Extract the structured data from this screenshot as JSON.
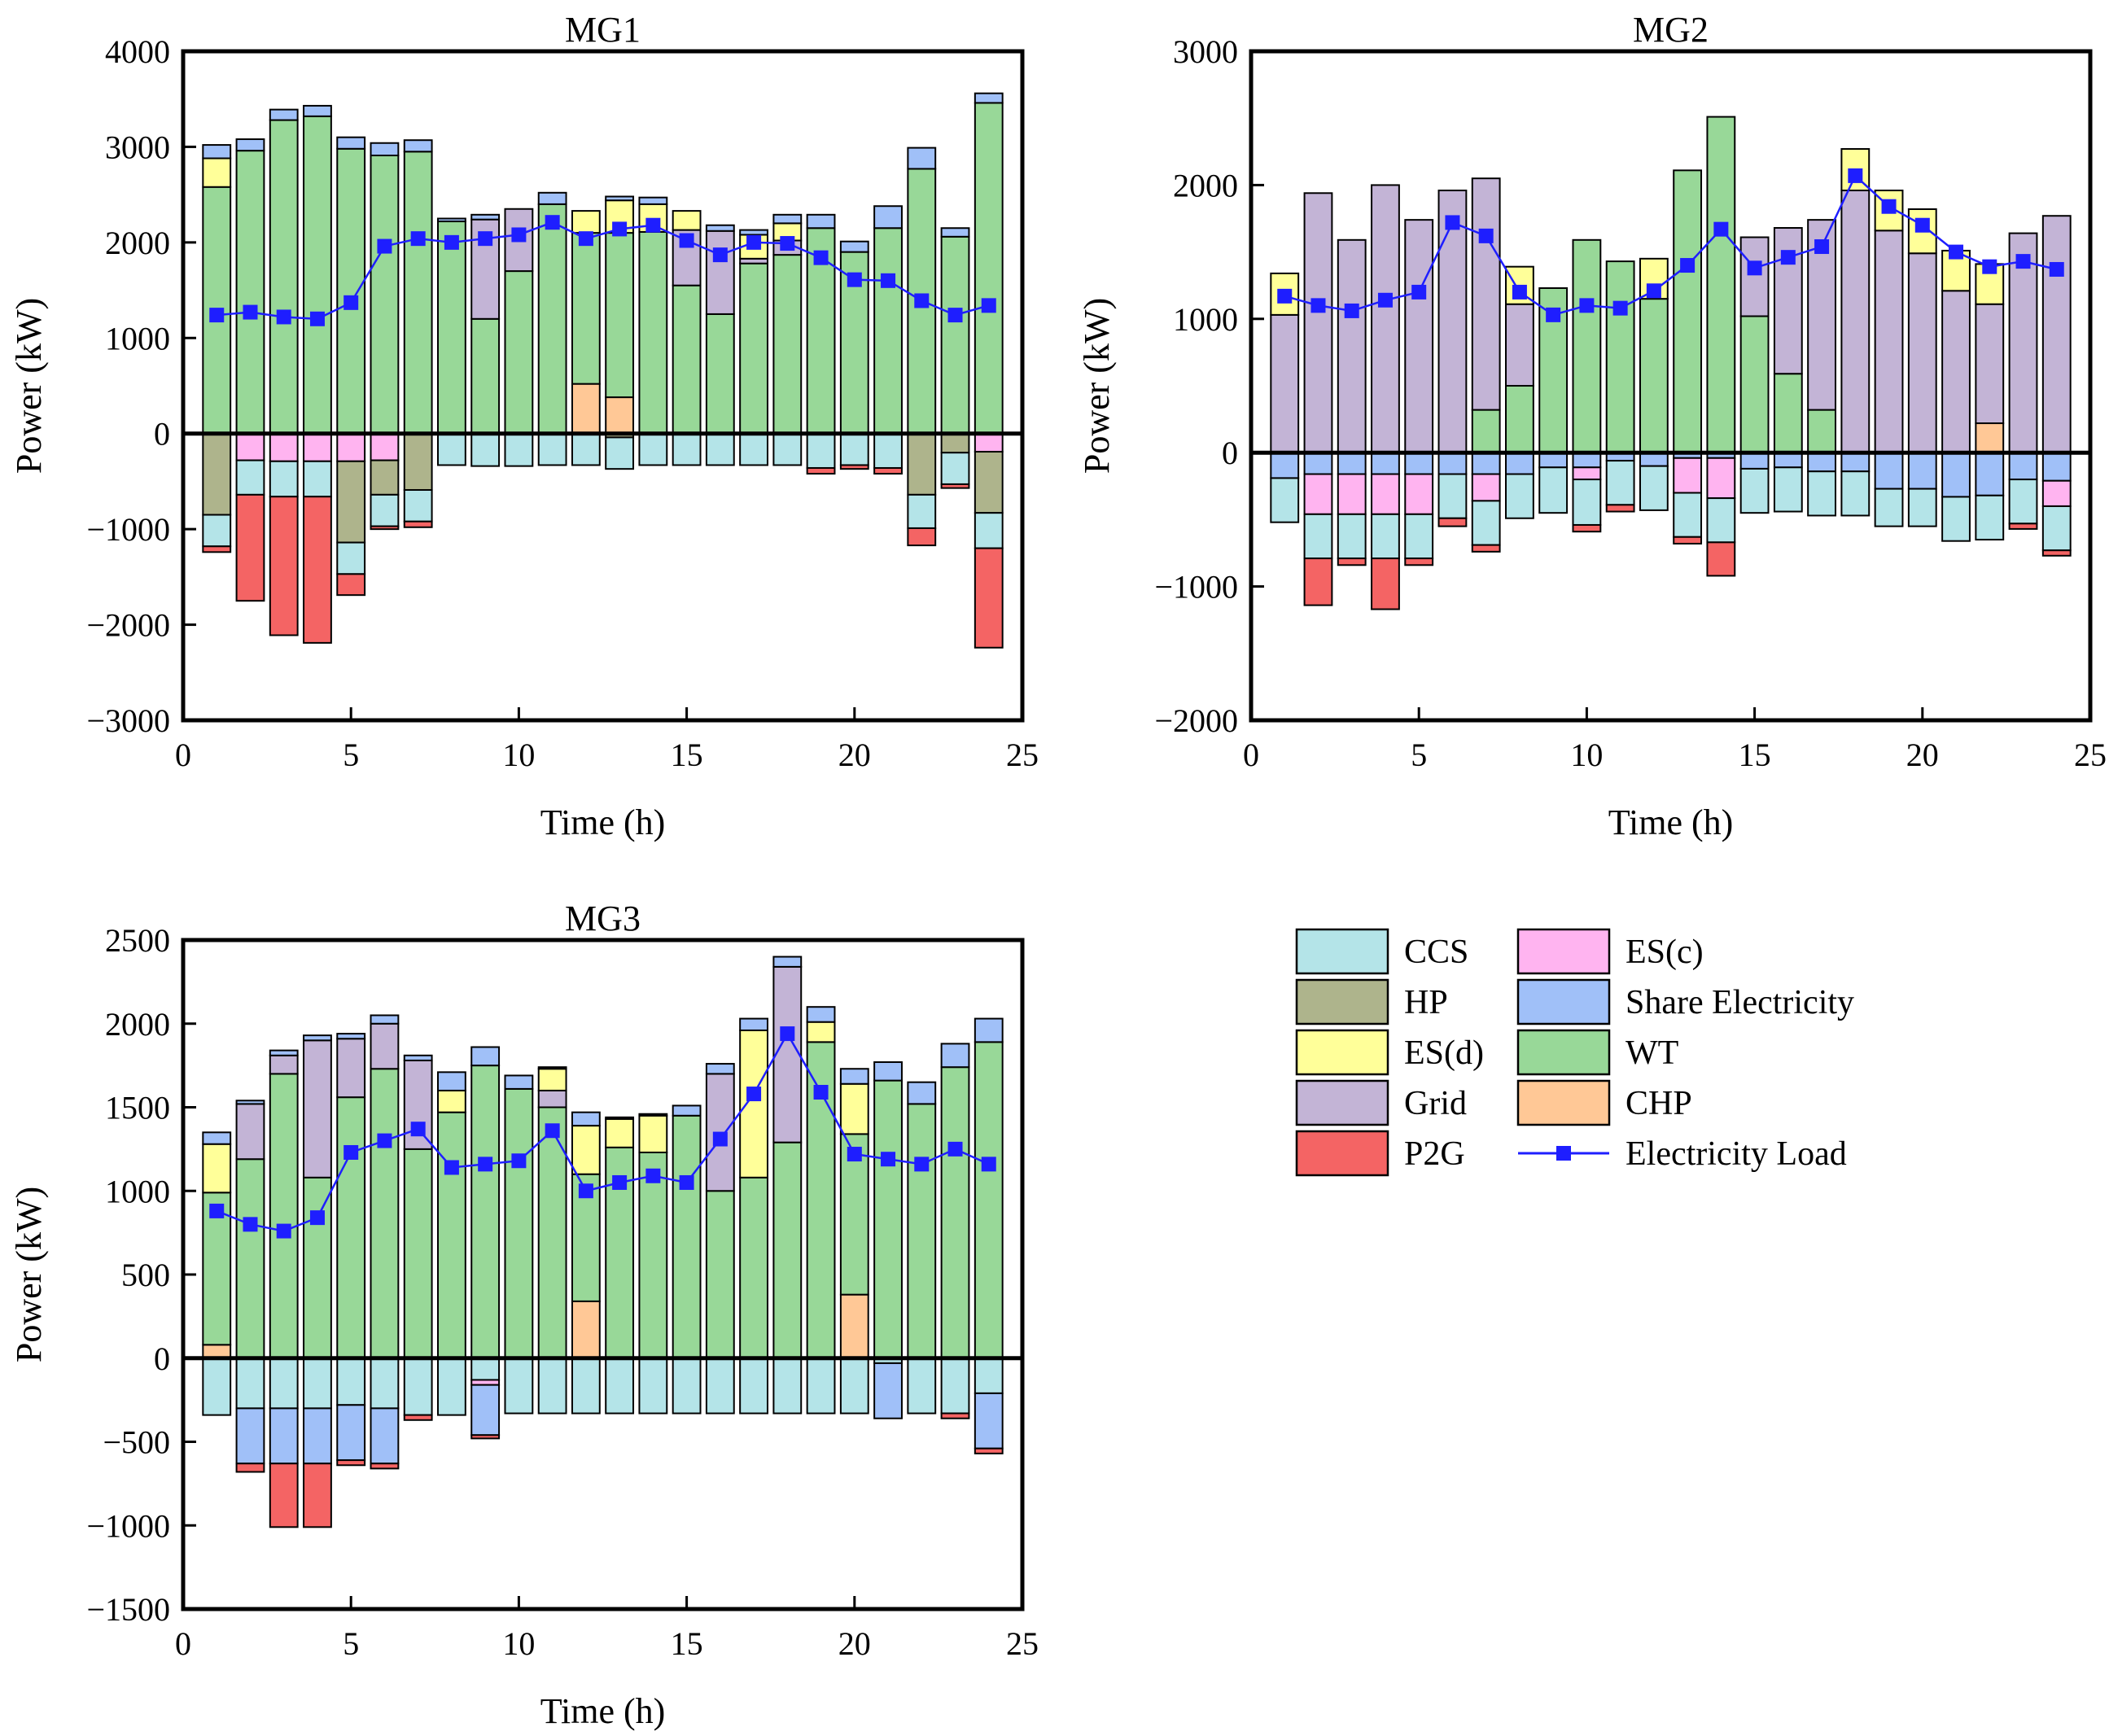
{
  "chart_data": [
    {
      "id": "mg1",
      "type": "stacked-bar+line",
      "title": "MG1",
      "xlabel": "Time (h)",
      "ylabel": "Power (kW)",
      "xlim": [
        0,
        25
      ],
      "ylim": [
        -3000,
        4000
      ],
      "xticks": [
        0,
        5,
        10,
        15,
        20,
        25
      ],
      "yticks": [
        -3000,
        -2000,
        -1000,
        0,
        1000,
        2000,
        3000,
        4000
      ],
      "x": [
        1,
        2,
        3,
        4,
        5,
        6,
        7,
        8,
        9,
        10,
        11,
        12,
        13,
        14,
        15,
        16,
        17,
        18,
        19,
        20,
        21,
        22,
        23,
        24
      ],
      "positive": [
        {
          "name": "CHP",
          "values": [
            0,
            0,
            0,
            0,
            0,
            0,
            0,
            0,
            0,
            0,
            0,
            520,
            380,
            0,
            0,
            0,
            0,
            0,
            0,
            0,
            0,
            0,
            0,
            0
          ]
        },
        {
          "name": "WT",
          "values": [
            2580,
            2960,
            3280,
            3320,
            2980,
            2910,
            2950,
            2220,
            1200,
            1700,
            2400,
            1580,
            1720,
            2110,
            1550,
            1250,
            1780,
            1870,
            2150,
            1900,
            2150,
            2770,
            2060,
            3460
          ]
        },
        {
          "name": "Grid",
          "values": [
            0,
            0,
            0,
            0,
            0,
            0,
            0,
            0,
            1040,
            650,
            0,
            0,
            0,
            0,
            580,
            870,
            50,
            150,
            0,
            0,
            0,
            0,
            0,
            0
          ]
        },
        {
          "name": "ES(d)",
          "values": [
            300,
            0,
            0,
            0,
            0,
            0,
            0,
            0,
            0,
            0,
            0,
            230,
            340,
            290,
            200,
            0,
            250,
            180,
            0,
            0,
            0,
            0,
            0,
            0
          ]
        },
        {
          "name": "Share Electricity",
          "values": [
            140,
            120,
            110,
            110,
            120,
            130,
            120,
            30,
            50,
            0,
            120,
            0,
            40,
            70,
            0,
            60,
            50,
            90,
            140,
            110,
            230,
            220,
            90,
            100
          ]
        }
      ],
      "negative": [
        {
          "name": "ES(c)",
          "values": [
            0,
            -280,
            -290,
            -290,
            -290,
            -280,
            0,
            0,
            0,
            0,
            0,
            0,
            0,
            0,
            0,
            0,
            0,
            0,
            0,
            0,
            0,
            0,
            0,
            -190
          ]
        },
        {
          "name": "HP",
          "values": [
            -850,
            0,
            0,
            0,
            -850,
            -360,
            -590,
            0,
            0,
            0,
            0,
            0,
            -40,
            0,
            0,
            0,
            0,
            0,
            0,
            0,
            0,
            -640,
            -200,
            -640
          ]
        },
        {
          "name": "CCS",
          "values": [
            -330,
            -360,
            -370,
            -370,
            -330,
            -330,
            -330,
            -330,
            -340,
            -340,
            -330,
            -330,
            -330,
            -330,
            -330,
            -330,
            -330,
            -330,
            -360,
            -330,
            -360,
            -350,
            -330,
            -370
          ]
        },
        {
          "name": "P2G",
          "values": [
            -60,
            -1110,
            -1450,
            -1530,
            -220,
            -30,
            -60,
            0,
            0,
            0,
            0,
            0,
            0,
            0,
            0,
            0,
            0,
            0,
            -60,
            -40,
            -60,
            -180,
            -40,
            -1040
          ]
        }
      ],
      "series": [
        {
          "name": "Electricity Load",
          "values": [
            1240,
            1270,
            1220,
            1200,
            1370,
            1960,
            2040,
            2000,
            2040,
            2080,
            2210,
            2040,
            2140,
            2180,
            2020,
            1870,
            2000,
            1990,
            1840,
            1610,
            1600,
            1390,
            1240,
            1340
          ]
        }
      ]
    },
    {
      "id": "mg2",
      "type": "stacked-bar+line",
      "title": "MG2",
      "xlabel": "Time (h)",
      "ylabel": "Power (kW)",
      "xlim": [
        0,
        25
      ],
      "ylim": [
        -2000,
        3000
      ],
      "xticks": [
        0,
        5,
        10,
        15,
        20,
        25
      ],
      "yticks": [
        -2000,
        -1000,
        0,
        1000,
        2000,
        3000
      ],
      "x": [
        1,
        2,
        3,
        4,
        5,
        6,
        7,
        8,
        9,
        10,
        11,
        12,
        13,
        14,
        15,
        16,
        17,
        18,
        19,
        20,
        21,
        22,
        23,
        24
      ],
      "positive": [
        {
          "name": "CHP",
          "values": [
            0,
            0,
            0,
            0,
            0,
            0,
            0,
            0,
            0,
            0,
            0,
            0,
            0,
            0,
            0,
            0,
            0,
            0,
            0,
            0,
            0,
            220,
            0,
            0
          ]
        },
        {
          "name": "WT",
          "values": [
            0,
            0,
            0,
            0,
            0,
            0,
            320,
            500,
            1230,
            1590,
            1430,
            1150,
            2110,
            2510,
            1020,
            590,
            320,
            0,
            0,
            0,
            0,
            0,
            0,
            0
          ]
        },
        {
          "name": "Grid",
          "values": [
            1030,
            1940,
            1590,
            2000,
            1740,
            1960,
            1730,
            610,
            0,
            0,
            0,
            0,
            0,
            0,
            590,
            1090,
            1420,
            1960,
            1660,
            1490,
            1210,
            890,
            1640,
            1770
          ]
        },
        {
          "name": "ES(d)",
          "values": [
            310,
            0,
            0,
            0,
            0,
            0,
            0,
            280,
            0,
            0,
            0,
            300,
            0,
            0,
            0,
            0,
            0,
            310,
            300,
            330,
            300,
            300,
            0,
            0
          ]
        }
      ],
      "negative": [
        {
          "name": "Share Electricity",
          "values": [
            -190,
            -160,
            -160,
            -160,
            -160,
            -160,
            -160,
            -160,
            -110,
            -110,
            -60,
            -100,
            -40,
            -40,
            -120,
            -110,
            -140,
            -140,
            -270,
            -270,
            -330,
            -320,
            -200,
            -210
          ]
        },
        {
          "name": "ES(c)",
          "values": [
            0,
            -300,
            -300,
            -300,
            -300,
            0,
            -200,
            0,
            0,
            -90,
            0,
            0,
            -260,
            -300,
            0,
            0,
            0,
            0,
            0,
            0,
            0,
            0,
            0,
            -190
          ]
        },
        {
          "name": "CCS",
          "values": [
            -330,
            -330,
            -330,
            -330,
            -330,
            -330,
            -330,
            -330,
            -340,
            -340,
            -330,
            -330,
            -330,
            -330,
            -330,
            -330,
            -330,
            -330,
            -280,
            -280,
            -330,
            -330,
            -330,
            -330
          ]
        },
        {
          "name": "P2G",
          "values": [
            0,
            -350,
            -50,
            -380,
            -50,
            -60,
            -50,
            0,
            0,
            -50,
            -50,
            0,
            -50,
            -250,
            0,
            0,
            0,
            0,
            0,
            0,
            0,
            0,
            -40,
            -40
          ]
        }
      ],
      "series": [
        {
          "name": "Electricity Load",
          "values": [
            1170,
            1100,
            1060,
            1140,
            1200,
            1720,
            1620,
            1200,
            1030,
            1100,
            1080,
            1210,
            1400,
            1670,
            1380,
            1460,
            1540,
            2070,
            1840,
            1700,
            1500,
            1390,
            1430,
            1370
          ]
        }
      ]
    },
    {
      "id": "mg3",
      "type": "stacked-bar+line",
      "title": "MG3",
      "xlabel": "Time (h)",
      "ylabel": "Power (kW)",
      "xlim": [
        0,
        25
      ],
      "ylim": [
        -1500,
        2500
      ],
      "xticks": [
        0,
        5,
        10,
        15,
        20,
        25
      ],
      "yticks": [
        -1500,
        -1000,
        -500,
        0,
        500,
        1000,
        1500,
        2000,
        2500
      ],
      "x": [
        1,
        2,
        3,
        4,
        5,
        6,
        7,
        8,
        9,
        10,
        11,
        12,
        13,
        14,
        15,
        16,
        17,
        18,
        19,
        20,
        21,
        22,
        23,
        24
      ],
      "positive": [
        {
          "name": "CHP",
          "values": [
            80,
            0,
            0,
            0,
            0,
            0,
            0,
            0,
            0,
            0,
            0,
            340,
            0,
            0,
            0,
            0,
            0,
            0,
            0,
            380,
            0,
            0,
            0,
            0
          ]
        },
        {
          "name": "WT",
          "values": [
            910,
            1190,
            1700,
            1080,
            1560,
            1730,
            1250,
            1470,
            1750,
            1610,
            1500,
            760,
            1260,
            1230,
            1450,
            1000,
            1080,
            1290,
            1890,
            960,
            1660,
            1520,
            1740,
            1890
          ]
        },
        {
          "name": "Grid",
          "values": [
            0,
            330,
            110,
            820,
            350,
            270,
            530,
            0,
            0,
            0,
            100,
            0,
            0,
            0,
            0,
            700,
            0,
            1050,
            0,
            0,
            0,
            0,
            0,
            0
          ]
        },
        {
          "name": "ES(d)",
          "values": [
            290,
            0,
            0,
            0,
            0,
            0,
            0,
            130,
            0,
            0,
            130,
            290,
            170,
            220,
            0,
            0,
            880,
            0,
            120,
            300,
            0,
            0,
            0,
            0
          ]
        },
        {
          "name": "Share Electricity",
          "values": [
            70,
            20,
            30,
            30,
            30,
            50,
            30,
            110,
            110,
            80,
            10,
            80,
            10,
            10,
            60,
            60,
            70,
            60,
            90,
            90,
            110,
            130,
            140,
            140
          ]
        }
      ],
      "negative": [
        {
          "name": "CCS",
          "values": [
            -340,
            -300,
            -300,
            -300,
            -280,
            -300,
            -340,
            -340,
            -130,
            -330,
            -330,
            -330,
            -330,
            -330,
            -330,
            -330,
            -330,
            -330,
            -330,
            -330,
            -30,
            -330,
            -330,
            -210
          ]
        },
        {
          "name": "ES(c)",
          "values": [
            0,
            0,
            0,
            0,
            0,
            0,
            0,
            0,
            -30,
            0,
            0,
            0,
            0,
            0,
            0,
            0,
            0,
            0,
            0,
            0,
            0,
            0,
            0,
            0
          ]
        },
        {
          "name": "Share Electricity",
          "values": [
            0,
            -330,
            -330,
            -330,
            -330,
            -330,
            0,
            0,
            -300,
            0,
            0,
            0,
            0,
            0,
            0,
            0,
            0,
            0,
            0,
            0,
            -330,
            0,
            0,
            -330
          ]
        },
        {
          "name": "P2G",
          "values": [
            0,
            -50,
            -380,
            -380,
            -30,
            -30,
            -30,
            0,
            -20,
            0,
            0,
            0,
            0,
            0,
            0,
            0,
            0,
            0,
            0,
            0,
            0,
            0,
            -30,
            -30
          ]
        }
      ],
      "series": [
        {
          "name": "Electricity Load",
          "values": [
            880,
            800,
            760,
            840,
            1230,
            1300,
            1370,
            1140,
            1160,
            1180,
            1360,
            1000,
            1050,
            1090,
            1050,
            1310,
            1580,
            1940,
            1590,
            1220,
            1190,
            1160,
            1250,
            1160
          ]
        }
      ]
    }
  ],
  "colors": {
    "CCS": "#b4e4e8",
    "HP": "#aeb48c",
    "ES(d)": "#ffff99",
    "Grid": "#c3b4d6",
    "P2G": "#f46464",
    "ES(c)": "#ffb4f0",
    "Share Electricity": "#a0c0f8",
    "WT": "#98d898",
    "CHP": "#ffc896",
    "Electricity Load": "#1e1eff"
  },
  "legend": {
    "placement": "bottom-right",
    "items": [
      "CCS",
      "ES(c)",
      "HP",
      "Share Electricity",
      "ES(d)",
      "WT",
      "Grid",
      "CHP",
      "P2G",
      "Electricity Load"
    ]
  }
}
